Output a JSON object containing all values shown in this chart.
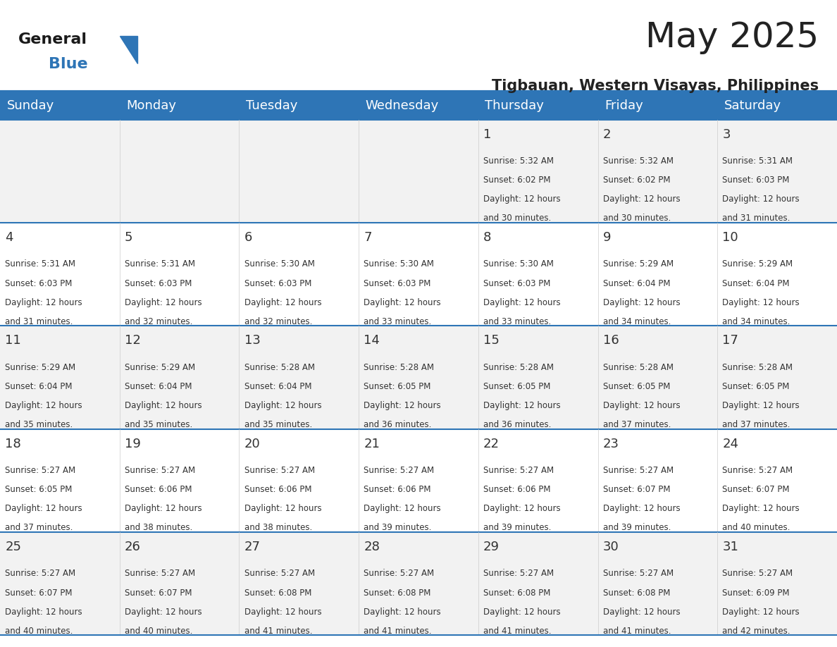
{
  "title": "May 2025",
  "subtitle": "Tigbauan, Western Visayas, Philippines",
  "header_bg_color": "#2E75B6",
  "header_text_color": "#FFFFFF",
  "day_names": [
    "Sunday",
    "Monday",
    "Tuesday",
    "Wednesday",
    "Thursday",
    "Friday",
    "Saturday"
  ],
  "row_bg_colors": [
    "#F2F2F2",
    "#FFFFFF"
  ],
  "separator_color": "#2E75B6",
  "cell_text_color": "#333333",
  "day_num_color": "#333333",
  "title_color": "#222222",
  "subtitle_color": "#222222",
  "logo_general_color": "#1A1A1A",
  "logo_blue_color": "#2E75B6",
  "weeks": [
    {
      "days": [
        {
          "day": null,
          "sunrise": null,
          "sunset": null,
          "daylight_hours": null,
          "daylight_minutes": null
        },
        {
          "day": null,
          "sunrise": null,
          "sunset": null,
          "daylight_hours": null,
          "daylight_minutes": null
        },
        {
          "day": null,
          "sunrise": null,
          "sunset": null,
          "daylight_hours": null,
          "daylight_minutes": null
        },
        {
          "day": null,
          "sunrise": null,
          "sunset": null,
          "daylight_hours": null,
          "daylight_minutes": null
        },
        {
          "day": 1,
          "sunrise": "5:32 AM",
          "sunset": "6:02 PM",
          "daylight_hours": 12,
          "daylight_minutes": 30
        },
        {
          "day": 2,
          "sunrise": "5:32 AM",
          "sunset": "6:02 PM",
          "daylight_hours": 12,
          "daylight_minutes": 30
        },
        {
          "day": 3,
          "sunrise": "5:31 AM",
          "sunset": "6:03 PM",
          "daylight_hours": 12,
          "daylight_minutes": 31
        }
      ]
    },
    {
      "days": [
        {
          "day": 4,
          "sunrise": "5:31 AM",
          "sunset": "6:03 PM",
          "daylight_hours": 12,
          "daylight_minutes": 31
        },
        {
          "day": 5,
          "sunrise": "5:31 AM",
          "sunset": "6:03 PM",
          "daylight_hours": 12,
          "daylight_minutes": 32
        },
        {
          "day": 6,
          "sunrise": "5:30 AM",
          "sunset": "6:03 PM",
          "daylight_hours": 12,
          "daylight_minutes": 32
        },
        {
          "day": 7,
          "sunrise": "5:30 AM",
          "sunset": "6:03 PM",
          "daylight_hours": 12,
          "daylight_minutes": 33
        },
        {
          "day": 8,
          "sunrise": "5:30 AM",
          "sunset": "6:03 PM",
          "daylight_hours": 12,
          "daylight_minutes": 33
        },
        {
          "day": 9,
          "sunrise": "5:29 AM",
          "sunset": "6:04 PM",
          "daylight_hours": 12,
          "daylight_minutes": 34
        },
        {
          "day": 10,
          "sunrise": "5:29 AM",
          "sunset": "6:04 PM",
          "daylight_hours": 12,
          "daylight_minutes": 34
        }
      ]
    },
    {
      "days": [
        {
          "day": 11,
          "sunrise": "5:29 AM",
          "sunset": "6:04 PM",
          "daylight_hours": 12,
          "daylight_minutes": 35
        },
        {
          "day": 12,
          "sunrise": "5:29 AM",
          "sunset": "6:04 PM",
          "daylight_hours": 12,
          "daylight_minutes": 35
        },
        {
          "day": 13,
          "sunrise": "5:28 AM",
          "sunset": "6:04 PM",
          "daylight_hours": 12,
          "daylight_minutes": 35
        },
        {
          "day": 14,
          "sunrise": "5:28 AM",
          "sunset": "6:05 PM",
          "daylight_hours": 12,
          "daylight_minutes": 36
        },
        {
          "day": 15,
          "sunrise": "5:28 AM",
          "sunset": "6:05 PM",
          "daylight_hours": 12,
          "daylight_minutes": 36
        },
        {
          "day": 16,
          "sunrise": "5:28 AM",
          "sunset": "6:05 PM",
          "daylight_hours": 12,
          "daylight_minutes": 37
        },
        {
          "day": 17,
          "sunrise": "5:28 AM",
          "sunset": "6:05 PM",
          "daylight_hours": 12,
          "daylight_minutes": 37
        }
      ]
    },
    {
      "days": [
        {
          "day": 18,
          "sunrise": "5:27 AM",
          "sunset": "6:05 PM",
          "daylight_hours": 12,
          "daylight_minutes": 37
        },
        {
          "day": 19,
          "sunrise": "5:27 AM",
          "sunset": "6:06 PM",
          "daylight_hours": 12,
          "daylight_minutes": 38
        },
        {
          "day": 20,
          "sunrise": "5:27 AM",
          "sunset": "6:06 PM",
          "daylight_hours": 12,
          "daylight_minutes": 38
        },
        {
          "day": 21,
          "sunrise": "5:27 AM",
          "sunset": "6:06 PM",
          "daylight_hours": 12,
          "daylight_minutes": 39
        },
        {
          "day": 22,
          "sunrise": "5:27 AM",
          "sunset": "6:06 PM",
          "daylight_hours": 12,
          "daylight_minutes": 39
        },
        {
          "day": 23,
          "sunrise": "5:27 AM",
          "sunset": "6:07 PM",
          "daylight_hours": 12,
          "daylight_minutes": 39
        },
        {
          "day": 24,
          "sunrise": "5:27 AM",
          "sunset": "6:07 PM",
          "daylight_hours": 12,
          "daylight_minutes": 40
        }
      ]
    },
    {
      "days": [
        {
          "day": 25,
          "sunrise": "5:27 AM",
          "sunset": "6:07 PM",
          "daylight_hours": 12,
          "daylight_minutes": 40
        },
        {
          "day": 26,
          "sunrise": "5:27 AM",
          "sunset": "6:07 PM",
          "daylight_hours": 12,
          "daylight_minutes": 40
        },
        {
          "day": 27,
          "sunrise": "5:27 AM",
          "sunset": "6:08 PM",
          "daylight_hours": 12,
          "daylight_minutes": 41
        },
        {
          "day": 28,
          "sunrise": "5:27 AM",
          "sunset": "6:08 PM",
          "daylight_hours": 12,
          "daylight_minutes": 41
        },
        {
          "day": 29,
          "sunrise": "5:27 AM",
          "sunset": "6:08 PM",
          "daylight_hours": 12,
          "daylight_minutes": 41
        },
        {
          "day": 30,
          "sunrise": "5:27 AM",
          "sunset": "6:08 PM",
          "daylight_hours": 12,
          "daylight_minutes": 41
        },
        {
          "day": 31,
          "sunrise": "5:27 AM",
          "sunset": "6:09 PM",
          "daylight_hours": 12,
          "daylight_minutes": 42
        }
      ]
    }
  ]
}
